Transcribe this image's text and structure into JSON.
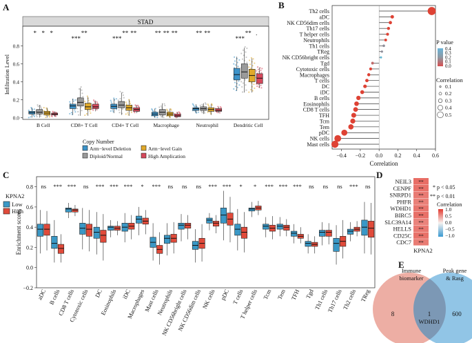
{
  "panels": {
    "A": {
      "label": "A",
      "strip": "STAD",
      "ylabel": "Infiltration Level",
      "yticks": [
        0.0,
        0.2,
        0.4,
        0.6,
        0.8
      ],
      "categories": [
        "B Cell",
        "CD8+ T Cell",
        "CD4+ T Cell",
        "Macrophage",
        "Neutrophil",
        "Dendritic Cell"
      ],
      "sig": [
        [
          "*",
          "*",
          "*"
        ],
        [
          "***",
          "**"
        ],
        [
          "***",
          "**",
          "**"
        ],
        [
          "**",
          "**",
          "**"
        ],
        [
          "**",
          "**"
        ],
        [
          "***",
          "**",
          "."
        ]
      ],
      "legend_title": "Copy Number",
      "legend": [
        {
          "label": "Arm−level Deletion",
          "color": "#3d93c9"
        },
        {
          "label": "Diploid/Normal",
          "color": "#9a9a9a"
        },
        {
          "label": "Arm−level Gain",
          "color": "#e0a92a"
        },
        {
          "label": "High Amplication",
          "color": "#d6495c"
        }
      ]
    },
    "B": {
      "label": "B",
      "xlabel": "Correlation",
      "xticks": [
        "−0.4",
        "−0.2",
        "0.0",
        "0.2",
        "0.4",
        "0.6"
      ],
      "pvalue_title": "P value",
      "pvalue_ticks": [
        "0.4",
        "0.3",
        "0.2",
        "0.1",
        "0.0"
      ],
      "corr_title": "Correlation",
      "corr_ticks": [
        "0.1",
        "0.2",
        "0.3",
        "0.4",
        "0.5"
      ]
    },
    "C": {
      "label": "C",
      "legend_title": "KPNA2",
      "legend_low": "Low",
      "legend_high": "High",
      "ylabel": "Enrichment scores",
      "yticks": [
        "−0.2",
        "0.0",
        "0.2",
        "0.4",
        "0.6",
        "0.8"
      ]
    },
    "D": {
      "label": "D",
      "genes": [
        "NEIL3",
        "CENPF",
        "SNRPD1",
        "PHFR",
        "WDHD1",
        "BIRC5",
        "SLC39A14",
        "HELLS",
        "CD25C",
        "CDC7"
      ],
      "stars": "**",
      "xlabel": "KPNA2",
      "sig1": "* p < 0.05",
      "sig2": "** p < 0.01",
      "corr_title": "Correlation",
      "corr_ticks": [
        "1.0",
        "0.5",
        "0.0",
        "−0.5",
        "−1.0"
      ]
    },
    "E": {
      "label": "E",
      "left_title": [
        "Immune",
        "biomarker"
      ],
      "right_title": [
        "Peak gene",
        "& Rasg"
      ],
      "left_only": "8",
      "overlap": "1",
      "right_only": "600",
      "overlap_gene": "WDHD1"
    }
  },
  "chart_data": [
    {
      "type": "box",
      "panel": "A",
      "title": "STAD",
      "xlabel": "",
      "ylabel": "Infiltration Level",
      "ylim": [
        -0.02,
        1.02
      ],
      "categories": [
        "B Cell",
        "CD8+ T Cell",
        "CD4+ T Cell",
        "Macrophage",
        "Neutrophil",
        "Dendritic Cell"
      ],
      "series": [
        {
          "name": "Arm−level Deletion",
          "color": "#3d93c9",
          "q1": [
            0.04,
            0.1,
            0.1,
            0.02,
            0.08,
            0.42
          ],
          "median": [
            0.055,
            0.13,
            0.125,
            0.04,
            0.1,
            0.48
          ],
          "q3": [
            0.07,
            0.15,
            0.15,
            0.06,
            0.11,
            0.55
          ],
          "lo": [
            0.0,
            0.03,
            0.05,
            0.0,
            0.05,
            0.3
          ],
          "hi": [
            0.11,
            0.21,
            0.21,
            0.1,
            0.15,
            0.68
          ]
        },
        {
          "name": "Diploid/Normal",
          "color": "#9a9a9a",
          "q1": [
            0.04,
            0.13,
            0.11,
            0.03,
            0.08,
            0.44
          ],
          "median": [
            0.06,
            0.17,
            0.14,
            0.06,
            0.1,
            0.51
          ],
          "q3": [
            0.09,
            0.22,
            0.18,
            0.09,
            0.12,
            0.6
          ],
          "lo": [
            0.0,
            0.02,
            0.03,
            0.0,
            0.04,
            0.28
          ],
          "hi": [
            0.14,
            0.33,
            0.28,
            0.16,
            0.16,
            0.78
          ]
        },
        {
          "name": "Arm−level Gain",
          "color": "#e0a92a",
          "q1": [
            0.03,
            0.09,
            0.08,
            0.02,
            0.07,
            0.4
          ],
          "median": [
            0.05,
            0.12,
            0.11,
            0.04,
            0.09,
            0.47
          ],
          "q3": [
            0.07,
            0.16,
            0.14,
            0.06,
            0.11,
            0.54
          ],
          "lo": [
            0.0,
            0.02,
            0.02,
            0.0,
            0.03,
            0.28
          ],
          "hi": [
            0.11,
            0.23,
            0.2,
            0.1,
            0.15,
            0.66
          ]
        },
        {
          "name": "High Amplication",
          "color": "#d6495c",
          "q1": [
            0.03,
            0.1,
            0.07,
            0.01,
            0.07,
            0.38
          ],
          "median": [
            0.04,
            0.12,
            0.09,
            0.02,
            0.08,
            0.44
          ],
          "q3": [
            0.05,
            0.15,
            0.11,
            0.04,
            0.1,
            0.49
          ],
          "lo": [
            0.01,
            0.07,
            0.05,
            0.0,
            0.05,
            0.33
          ],
          "hi": [
            0.07,
            0.19,
            0.14,
            0.06,
            0.12,
            0.56
          ]
        }
      ]
    },
    {
      "type": "lollipop",
      "panel": "B",
      "xlabel": "Correlation",
      "xlim": [
        -0.5,
        0.6
      ],
      "categories": [
        "Th2 cells",
        "aDC",
        "NK CD56dim cells",
        "Th17 cells",
        "T helper cells",
        "Neutrophils",
        "Th1 cells",
        "TReg",
        "NK CD56bright cells",
        "Tgd",
        "Cytotoxic cells",
        "Macrophages",
        "T cells",
        "DC",
        "iDC",
        "B cells",
        "Eosinophils",
        "CD8 T cells",
        "TFH",
        "Tcm",
        "Tem",
        "pDC",
        "NK cells",
        "Mast cells"
      ],
      "values": [
        0.56,
        0.14,
        0.12,
        0.1,
        0.09,
        0.07,
        0.05,
        0.03,
        0.02,
        -0.07,
        -0.09,
        -0.11,
        -0.13,
        -0.15,
        -0.18,
        -0.22,
        -0.24,
        -0.25,
        -0.27,
        -0.28,
        -0.3,
        -0.37,
        -0.44,
        -0.47
      ],
      "pvalue": [
        0.0,
        0.0,
        0.0,
        0.0,
        0.0,
        0.0,
        0.25,
        0.3,
        0.45,
        0.1,
        0.0,
        0.0,
        0.0,
        0.0,
        0.0,
        0.0,
        0.0,
        0.0,
        0.0,
        0.0,
        0.0,
        0.0,
        0.0,
        0.0
      ]
    },
    {
      "type": "box",
      "panel": "C",
      "ylabel": "Enrichment scores",
      "ylim": [
        -0.2,
        0.9
      ],
      "categories": [
        "aDC",
        "B cells",
        "CD8 T cells",
        "Cytotoxic cells",
        "DC",
        "Eosinophils",
        "iDC",
        "Macrophages",
        "Mast cells",
        "Neutrophils",
        "NK CD56bright cells",
        "NK CD56dim cells",
        "NK cells",
        "pDC",
        "T cells",
        "T helper cells",
        "Tcm",
        "Tem",
        "TFH",
        "Tgd",
        "Th1 cells",
        "Th17 cells",
        "Th2 cells",
        "TReg"
      ],
      "significance": [
        "ns",
        "***",
        "***",
        "ns",
        "***",
        "***",
        "***",
        "*",
        "***",
        "ns",
        "ns",
        "ns",
        "***",
        "***",
        "*",
        "*",
        "***",
        "***",
        "***",
        "ns",
        "ns",
        "ns",
        "***",
        "ns"
      ],
      "series": [
        {
          "name": "Low",
          "color": "#3a98c6",
          "q1": [
            0.31,
            0.19,
            0.55,
            0.33,
            0.29,
            0.37,
            0.36,
            0.44,
            0.2,
            0.24,
            0.38,
            0.18,
            0.44,
            0.44,
            0.32,
            0.56,
            0.38,
            0.38,
            0.31,
            0.21,
            0.31,
            0.16,
            0.33,
            0.32
          ],
          "median": [
            0.38,
            0.24,
            0.58,
            0.39,
            0.35,
            0.4,
            0.4,
            0.48,
            0.25,
            0.29,
            0.42,
            0.22,
            0.47,
            0.52,
            0.38,
            0.58,
            0.41,
            0.41,
            0.34,
            0.24,
            0.35,
            0.24,
            0.36,
            0.4
          ],
          "q3": [
            0.43,
            0.31,
            0.59,
            0.44,
            0.4,
            0.41,
            0.44,
            0.51,
            0.3,
            0.32,
            0.44,
            0.26,
            0.49,
            0.59,
            0.43,
            0.59,
            0.43,
            0.43,
            0.36,
            0.26,
            0.37,
            0.29,
            0.38,
            0.47
          ],
          "lo": [
            0.14,
            0.05,
            0.49,
            0.18,
            0.13,
            0.3,
            0.25,
            0.32,
            0.07,
            0.12,
            0.26,
            0.05,
            0.37,
            0.27,
            0.17,
            0.5,
            0.3,
            0.31,
            0.24,
            0.14,
            0.22,
            0.03,
            0.26,
            0.14
          ],
          "hi": [
            0.57,
            0.47,
            0.64,
            0.59,
            0.55,
            0.47,
            0.54,
            0.6,
            0.44,
            0.44,
            0.53,
            0.38,
            0.54,
            0.76,
            0.58,
            0.65,
            0.5,
            0.5,
            0.43,
            0.33,
            0.45,
            0.42,
            0.45,
            0.65
          ]
        },
        {
          "name": "High",
          "color": "#e04a3a",
          "q1": [
            0.32,
            0.14,
            0.55,
            0.31,
            0.25,
            0.37,
            0.38,
            0.43,
            0.14,
            0.25,
            0.39,
            0.19,
            0.41,
            0.42,
            0.29,
            0.57,
            0.36,
            0.37,
            0.29,
            0.21,
            0.31,
            0.21,
            0.36,
            0.3
          ],
          "median": [
            0.38,
            0.19,
            0.57,
            0.38,
            0.32,
            0.39,
            0.41,
            0.46,
            0.18,
            0.29,
            0.42,
            0.24,
            0.44,
            0.48,
            0.35,
            0.59,
            0.39,
            0.4,
            0.31,
            0.23,
            0.35,
            0.26,
            0.38,
            0.39
          ],
          "q3": [
            0.43,
            0.23,
            0.58,
            0.43,
            0.37,
            0.41,
            0.44,
            0.49,
            0.22,
            0.33,
            0.44,
            0.29,
            0.46,
            0.54,
            0.4,
            0.61,
            0.42,
            0.42,
            0.33,
            0.25,
            0.37,
            0.31,
            0.4,
            0.46
          ],
          "lo": [
            0.17,
            0.05,
            0.51,
            0.16,
            0.07,
            0.32,
            0.28,
            0.33,
            0.03,
            0.14,
            0.28,
            0.06,
            0.34,
            0.25,
            0.15,
            0.52,
            0.28,
            0.31,
            0.24,
            0.14,
            0.23,
            0.09,
            0.31,
            0.13
          ],
          "hi": [
            0.56,
            0.33,
            0.62,
            0.57,
            0.53,
            0.46,
            0.52,
            0.57,
            0.35,
            0.45,
            0.52,
            0.43,
            0.52,
            0.7,
            0.55,
            0.66,
            0.51,
            0.48,
            0.4,
            0.31,
            0.44,
            0.47,
            0.46,
            0.64
          ]
        }
      ]
    },
    {
      "type": "heatmap",
      "panel": "D",
      "rows": [
        "NEIL3",
        "CENPF",
        "SNRPD1",
        "PHFR",
        "WDHD1",
        "BIRC5",
        "SLC39A14",
        "HELLS",
        "CD25C",
        "CDC7"
      ],
      "columns": [
        "KPNA2"
      ],
      "values": [
        0.72,
        0.7,
        0.65,
        0.62,
        0.68,
        0.71,
        0.6,
        0.66,
        0.7,
        0.64
      ],
      "zlim": [
        -1,
        1
      ]
    },
    {
      "type": "venn",
      "panel": "E",
      "sets": [
        "Immune biomarker",
        "Peak gene & Rasg"
      ],
      "counts": {
        "left_only": 8,
        "overlap": 1,
        "right_only": 600
      }
    }
  ]
}
